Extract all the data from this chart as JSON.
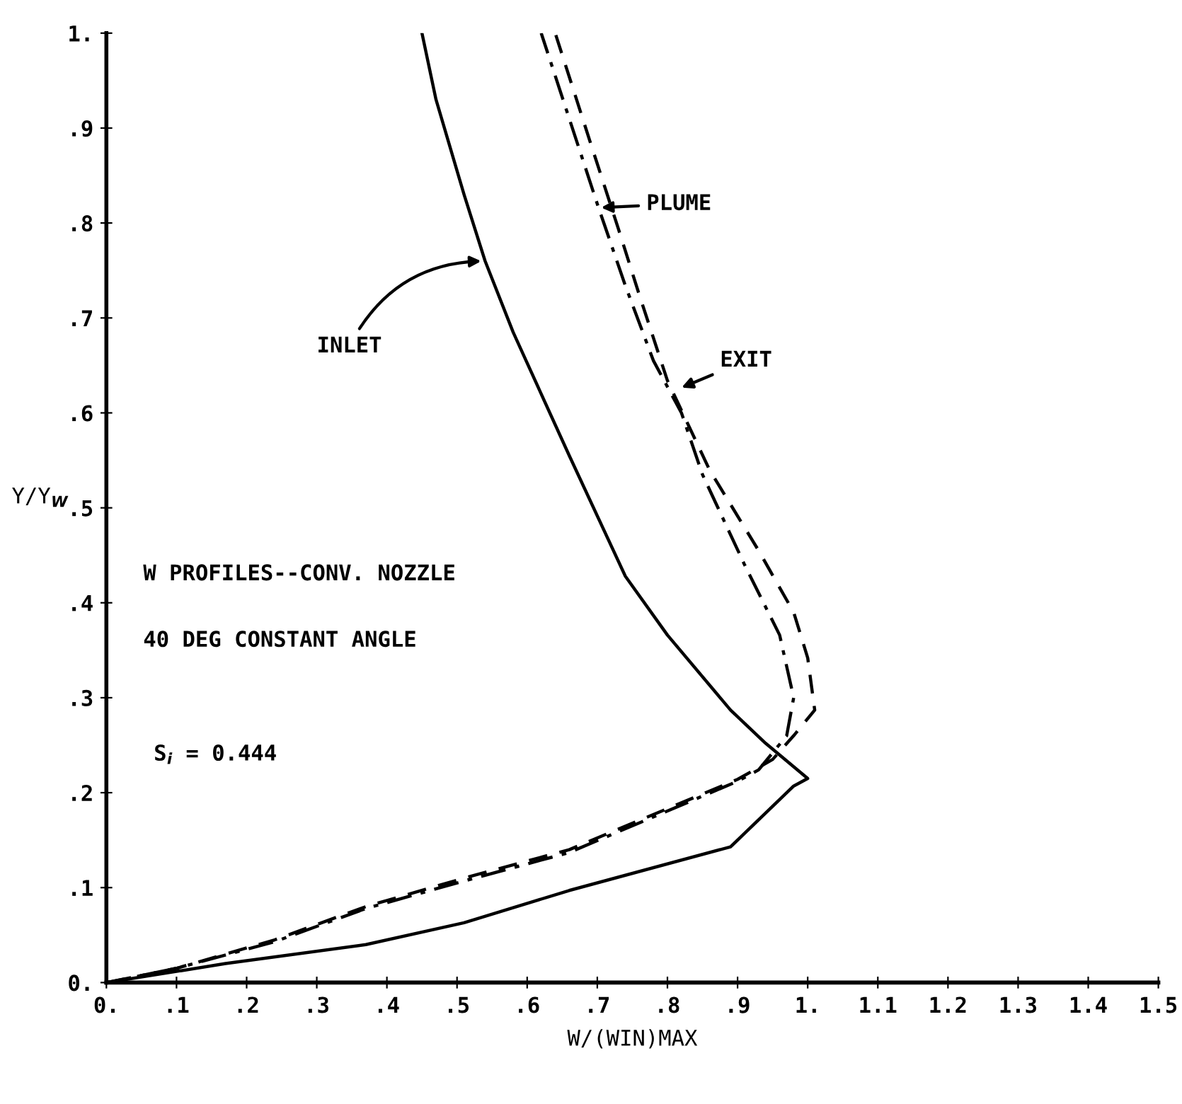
{
  "chart_data": {
    "type": "line",
    "xlabel": "W/(WIN)MAX",
    "ylabel": "Y/Y$_{W}$",
    "xlim": [
      0,
      1.5
    ],
    "ylim": [
      0,
      1
    ],
    "xticks": [
      {
        "value": 0,
        "label": "0."
      },
      {
        "value": 0.1,
        "label": ".1"
      },
      {
        "value": 0.2,
        "label": ".2"
      },
      {
        "value": 0.3,
        "label": ".3"
      },
      {
        "value": 0.4,
        "label": ".4"
      },
      {
        "value": 0.5,
        "label": ".5"
      },
      {
        "value": 0.6,
        "label": ".6"
      },
      {
        "value": 0.7,
        "label": ".7"
      },
      {
        "value": 0.8,
        "label": ".8"
      },
      {
        "value": 0.9,
        "label": ".9"
      },
      {
        "value": 1,
        "label": "1."
      },
      1.1,
      1.2,
      1.3,
      1.4,
      1.5
    ],
    "yticks": [
      {
        "value": 0,
        "label": "0."
      },
      {
        "value": 0.1,
        "label": ".1"
      },
      {
        "value": 0.2,
        "label": ".2"
      },
      {
        "value": 0.3,
        "label": ".3"
      },
      {
        "value": 0.4,
        "label": ".4"
      },
      {
        "value": 0.5,
        "label": ".5"
      },
      {
        "value": 0.6,
        "label": ".6"
      },
      {
        "value": 0.7,
        "label": ".7"
      },
      {
        "value": 0.8,
        "label": ".8"
      },
      {
        "value": 0.9,
        "label": ".9"
      },
      {
        "value": 1,
        "label": "1."
      }
    ],
    "grid": false,
    "legend": false,
    "marker": "none",
    "series": [
      {
        "color": "#000000",
        "line_style": "solid",
        "x": [
          0,
          0.17,
          0.37,
          0.51,
          0.66,
          0.89,
          0.98,
          1.0,
          0.94,
          0.89,
          0.8,
          0.74,
          0.66,
          0.58,
          0.54,
          0.51,
          0.47,
          0.45
        ],
        "values": [
          0,
          0.02,
          0.04,
          0.063,
          0.097,
          0.143,
          0.207,
          0.215,
          0.252,
          0.287,
          0.366,
          0.428,
          0.555,
          0.685,
          0.76,
          0.83,
          0.93,
          1.0
        ]
      },
      {
        "color": "#000000",
        "line_style": "dashdot",
        "x": [
          0,
          0.1,
          0.24,
          0.37,
          0.51,
          0.66,
          0.9,
          0.93,
          0.97,
          0.98,
          0.96,
          0.91,
          0.85,
          0.82,
          0.78,
          0.74,
          0.7,
          0.66,
          0.62
        ],
        "values": [
          0,
          0.015,
          0.043,
          0.078,
          0.107,
          0.137,
          0.212,
          0.224,
          0.26,
          0.3,
          0.366,
          0.44,
          0.535,
          0.6,
          0.655,
          0.734,
          0.82,
          0.91,
          1.0
        ]
      },
      {
        "color": "#000000",
        "line_style": "dashed",
        "x": [
          0,
          0.1,
          0.24,
          0.37,
          0.51,
          0.66,
          0.9,
          0.95,
          0.98,
          1.01,
          1.0,
          0.98,
          0.93,
          0.86,
          0.8,
          0.76,
          0.73,
          0.69,
          0.64
        ],
        "values": [
          0,
          0.015,
          0.045,
          0.08,
          0.11,
          0.14,
          0.214,
          0.235,
          0.26,
          0.287,
          0.342,
          0.39,
          0.455,
          0.54,
          0.634,
          0.724,
          0.794,
          0.885,
          1.0
        ]
      }
    ],
    "annotations": [
      {
        "text": "INLET",
        "x": 0.54,
        "y": 0.76
      },
      {
        "text": "PLUME",
        "x": 0.7,
        "y": 0.816
      },
      {
        "text": "EXIT",
        "x": 0.815,
        "y": 0.625
      },
      "W PROFILES--CONV. NOZZLE",
      "40 DEG CONSTANT ANGLE",
      "S$_{i}$ = 0.444"
    ]
  }
}
